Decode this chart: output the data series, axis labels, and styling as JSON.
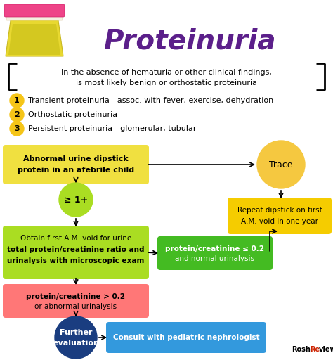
{
  "title": "Proteinuria",
  "title_color": "#5B1F8A",
  "bg_color": "#FFFFFF",
  "bracket_line1": "In the absence of hematuria or other clinical findings,",
  "bracket_line2": "is most likely benign or orthostatic proteinuria",
  "items": [
    {
      "num": "1",
      "text": "Transient proteinuria - assoc. with fever, exercise, dehydration"
    },
    {
      "num": "2",
      "text": "Orthostatic proteinuria"
    },
    {
      "num": "3",
      "text": "Persistent proteinuria - glomerular, tubular"
    }
  ],
  "bullet_color": "#F5C518",
  "box_yellow": "#F0E040",
  "box_yellow_light": "#F5CC00",
  "box_green_light": "#AADD22",
  "box_green": "#44BB22",
  "box_red": "#FF7777",
  "box_blue_dark": "#1A4A90",
  "box_blue_light": "#3399DD",
  "circle_green": "#AADD22",
  "circle_blue": "#1A3D80",
  "circle_orange": "#F5C840",
  "watermark_black": "Rosh",
  "watermark_red": "Re",
  "watermark_black2": "view"
}
